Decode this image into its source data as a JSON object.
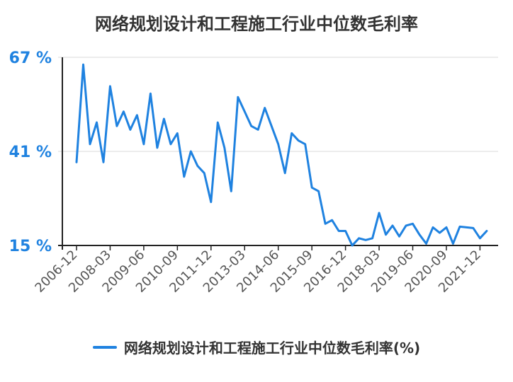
{
  "chart_data": {
    "type": "line",
    "title": "网络规划设计和工程施工行业中位数毛利率",
    "xlabel": "",
    "ylabel": "",
    "ylim": [
      15,
      67
    ],
    "y_ticks": [
      {
        "value": 67,
        "label": "67 %"
      },
      {
        "value": 41,
        "label": "41 %"
      },
      {
        "value": 15,
        "label": "15 %"
      }
    ],
    "x_tick_labels": [
      "2006-12",
      "2008-03",
      "2009-06",
      "2010-09",
      "2011-12",
      "2013-03",
      "2014-06",
      "2015-09",
      "2016-12",
      "2018-03",
      "2019-06",
      "2020-09",
      "2021-12"
    ],
    "x_start": "2006-12",
    "x_step_months": 3,
    "grid": true,
    "legend_position": "bottom",
    "series": [
      {
        "name": "网络规划设计和工程施工行业中位数毛利率(%)",
        "color": "#1f82e0",
        "values": [
          38,
          65,
          43,
          49,
          38,
          59,
          48,
          52,
          47,
          51,
          43,
          57,
          42,
          50,
          43,
          46,
          34,
          41,
          37,
          35,
          27,
          49,
          42,
          30,
          56,
          52,
          48,
          47,
          53,
          48,
          43,
          35,
          46,
          44,
          43,
          31,
          30,
          21,
          22,
          19,
          19,
          15,
          17,
          16.5,
          17,
          24,
          18,
          20.5,
          17.5,
          20.5,
          21,
          18,
          15.5,
          20,
          18.5,
          20,
          15.5,
          20.2,
          20,
          19.8,
          17,
          19
        ]
      }
    ]
  }
}
